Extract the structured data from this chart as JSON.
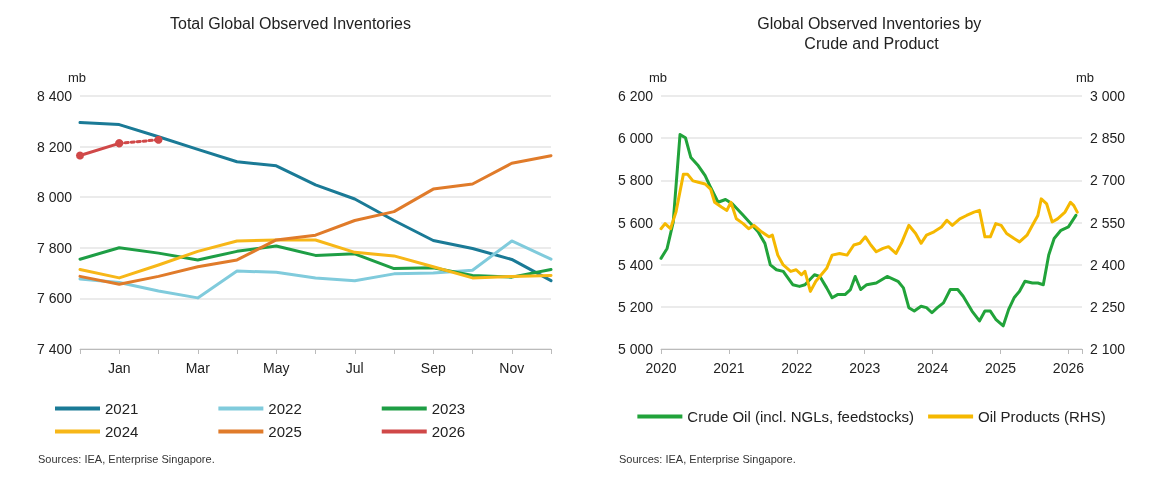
{
  "chart_data": [
    {
      "type": "line",
      "title": "Total Global Observed Inventories",
      "ylabel": "mb",
      "categories": [
        null,
        "Jan",
        null,
        "Mar",
        null,
        "May",
        null,
        "Jul",
        null,
        "Sep",
        null,
        "Nov",
        null
      ],
      "series": [
        {
          "name": "2021",
          "color": "#1a7a96",
          "values": [
            8295,
            8287,
            8239,
            8189,
            8140,
            8124,
            8049,
            7993,
            7908,
            7829,
            7797,
            7754,
            7670
          ]
        },
        {
          "name": "2022",
          "color": "#80cbdc",
          "values": [
            7677,
            7663,
            7629,
            7602,
            7708,
            7703,
            7681,
            7670,
            7697,
            7700,
            7711,
            7827,
            7755
          ]
        },
        {
          "name": "2023",
          "color": "#1e9e45",
          "values": [
            7755,
            7800,
            7779,
            7752,
            7786,
            7807,
            7770,
            7776,
            7718,
            7721,
            7691,
            7684,
            7714
          ]
        },
        {
          "name": "2024",
          "color": "#f7b718",
          "values": [
            7714,
            7681,
            7732,
            7786,
            7827,
            7831,
            7831,
            7782,
            7768,
            7725,
            7681,
            7687,
            7691
          ]
        },
        {
          "name": "2025",
          "color": "#e07b2a",
          "values": [
            7687,
            7656,
            7687,
            7725,
            7752,
            7831,
            7850,
            7908,
            7943,
            8032,
            8052,
            8134,
            8164
          ]
        },
        {
          "name": "2026",
          "color": "#d04848",
          "marker": "circle",
          "values": [
            8165,
            8213,
            null,
            null,
            null,
            null,
            null,
            null,
            null,
            null,
            null,
            null,
            null
          ]
        },
        {
          "color": "#d04848",
          "marker": "circle",
          "line_style": "dotted",
          "values": [
            null,
            8213,
            8227,
            null,
            null,
            null,
            null,
            null,
            null,
            null,
            null,
            null,
            null
          ]
        }
      ],
      "ylim": [
        7400,
        8400
      ],
      "yticks": [
        {
          "value": 7400,
          "label": "7 400"
        },
        {
          "value": 7600,
          "label": "7 600"
        },
        {
          "value": 7800,
          "label": "7 800"
        },
        {
          "value": 8000,
          "label": "8 000"
        },
        {
          "value": 8200,
          "label": "8 200"
        },
        {
          "value": 8400,
          "label": "8 400"
        }
      ],
      "grid": "y",
      "legend": "bottom",
      "marker": "none",
      "annotations": [
        "Sources: IEA, Enterprise Singapore."
      ]
    },
    {
      "type": "line",
      "title": "Global Observed Inventories by Crude and Product",
      "ylabel": "mb",
      "y2label": "mb",
      "series": [
        {
          "name": "Crude Oil (incl. NGLs, feedstocks)",
          "color": "#21a33a",
          "x": [
            2020.0,
            2020.09,
            2020.18,
            2020.28,
            2020.36,
            2020.44,
            2020.55,
            2020.65,
            2020.73,
            2020.84,
            2020.95,
            2021.05,
            2021.21,
            2021.43,
            2021.53,
            2021.61,
            2021.7,
            2021.8,
            2021.94,
            2022.04,
            2022.12,
            2022.26,
            2022.34,
            2022.44,
            2022.52,
            2022.6,
            2022.71,
            2022.79,
            2022.86,
            2022.94,
            2023.03,
            2023.17,
            2023.33,
            2023.49,
            2023.57,
            2023.65,
            2023.73,
            2023.83,
            2023.91,
            2023.99,
            2024.07,
            2024.16,
            2024.26,
            2024.37,
            2024.45,
            2024.58,
            2024.69,
            2024.77,
            2024.85,
            2024.93,
            2025.04,
            2025.12,
            2025.2,
            2025.28,
            2025.36,
            2025.47,
            2025.55,
            2025.63,
            2025.71,
            2025.79,
            2025.89,
            2026.0,
            2026.11
          ],
          "values": [
            5430,
            5477,
            5602,
            6017,
            6002,
            5908,
            5869,
            5822,
            5767,
            5696,
            5709,
            5689,
            5634,
            5556,
            5501,
            5399,
            5376,
            5368,
            5305,
            5297,
            5305,
            5352,
            5344,
            5290,
            5243,
            5258,
            5258,
            5282,
            5344,
            5282,
            5305,
            5313,
            5344,
            5321,
            5290,
            5196,
            5180,
            5203,
            5196,
            5172,
            5196,
            5219,
            5282,
            5282,
            5250,
            5180,
            5133,
            5180,
            5180,
            5141,
            5110,
            5188,
            5243,
            5274,
            5321,
            5313,
            5313,
            5305,
            5446,
            5524,
            5563,
            5579,
            5634
          ]
        },
        {
          "name": "Oil Products (RHS)",
          "color": "#f5b800",
          "axis": "y2",
          "x": [
            2020.0,
            2020.06,
            2020.14,
            2020.22,
            2020.33,
            2020.39,
            2020.47,
            2020.55,
            2020.65,
            2020.73,
            2020.79,
            2020.89,
            2020.97,
            2021.03,
            2021.11,
            2021.21,
            2021.29,
            2021.37,
            2021.48,
            2021.59,
            2021.64,
            2021.72,
            2021.8,
            2021.91,
            2021.99,
            2022.07,
            2022.12,
            2022.2,
            2022.28,
            2022.36,
            2022.44,
            2022.52,
            2022.63,
            2022.74,
            2022.84,
            2022.93,
            2023.01,
            2023.09,
            2023.17,
            2023.27,
            2023.35,
            2023.46,
            2023.54,
            2023.65,
            2023.75,
            2023.83,
            2023.91,
            2024.02,
            2024.13,
            2024.21,
            2024.29,
            2024.4,
            2024.5,
            2024.61,
            2024.69,
            2024.77,
            2024.85,
            2024.93,
            2025.01,
            2025.09,
            2025.2,
            2025.28,
            2025.39,
            2025.47,
            2025.55,
            2025.6,
            2025.68,
            2025.76,
            2025.84,
            2025.95,
            2026.03,
            2026.08,
            2026.13
          ],
          "values": [
            2528,
            2546,
            2528,
            2587,
            2722,
            2722,
            2698,
            2693,
            2687,
            2669,
            2622,
            2605,
            2593,
            2622,
            2563,
            2546,
            2528,
            2540,
            2517,
            2499,
            2505,
            2434,
            2399,
            2376,
            2382,
            2364,
            2376,
            2305,
            2341,
            2364,
            2387,
            2434,
            2440,
            2434,
            2470,
            2476,
            2499,
            2470,
            2446,
            2458,
            2464,
            2440,
            2476,
            2540,
            2511,
            2476,
            2505,
            2517,
            2534,
            2558,
            2540,
            2563,
            2575,
            2587,
            2593,
            2499,
            2499,
            2546,
            2540,
            2511,
            2493,
            2481,
            2505,
            2540,
            2575,
            2634,
            2616,
            2552,
            2563,
            2587,
            2622,
            2610,
            2587
          ]
        }
      ],
      "xlim": [
        2020,
        2026.2
      ],
      "xticks": [
        2020,
        2021,
        2022,
        2023,
        2024,
        2025,
        2026
      ],
      "ylim": [
        5000,
        6200
      ],
      "yticks": [
        {
          "value": 5000,
          "label": "5 000"
        },
        {
          "value": 5200,
          "label": "5 200"
        },
        {
          "value": 5400,
          "label": "5 400"
        },
        {
          "value": 5600,
          "label": "5 600"
        },
        {
          "value": 5800,
          "label": "5 800"
        },
        {
          "value": 6000,
          "label": "6 000"
        },
        {
          "value": 6200,
          "label": "6 200"
        }
      ],
      "y2lim": [
        2100,
        3000
      ],
      "y2ticks": [
        {
          "value": 2100,
          "label": "2 100"
        },
        {
          "value": 2250,
          "label": "2 250"
        },
        {
          "value": 2400,
          "label": "2 400"
        },
        {
          "value": 2550,
          "label": "2 550"
        },
        {
          "value": 2700,
          "label": "2 700"
        },
        {
          "value": 2850,
          "label": "2 850"
        },
        {
          "value": 3000,
          "label": "3 000"
        }
      ],
      "grid": "y",
      "legend": "bottom",
      "marker": "none",
      "annotations": [
        "Sources: IEA, Enterprise Singapore."
      ]
    }
  ]
}
